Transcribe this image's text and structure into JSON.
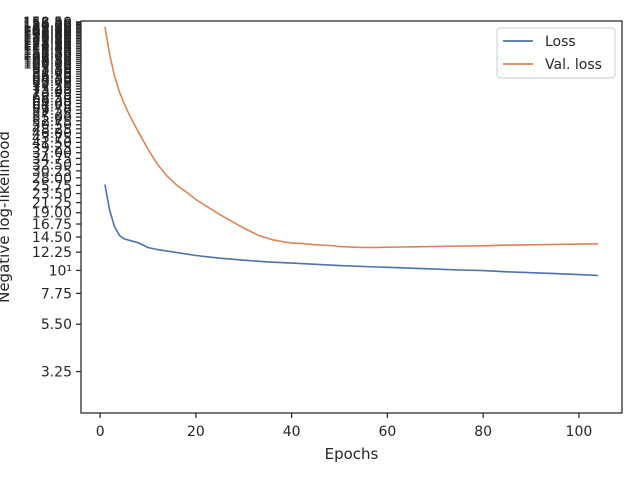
{
  "chart_data": {
    "type": "line",
    "xlabel": "Epochs",
    "ylabel": "Negative log-likelihood",
    "yscale": "log",
    "xlim": [
      -4,
      109
    ],
    "ylim": [
      2.05,
      160
    ],
    "grid": false,
    "legend_position": "top-right",
    "x_ticks": [
      0,
      20,
      40,
      60,
      80,
      100
    ],
    "x_tick_labels": [
      "0",
      "20",
      "40",
      "60",
      "80",
      "100"
    ],
    "y_ticks": [
      3.25,
      5.5,
      7.75,
      10,
      12.25,
      14.5,
      16.75,
      19,
      21.25,
      23.5,
      25.75,
      28,
      30.25,
      32.5,
      34.75,
      37,
      39.25,
      41.5,
      43.75,
      46,
      48.25,
      50.5,
      52.75,
      55,
      57.25,
      59.5,
      61.75,
      64,
      66.25,
      68.5,
      70.75,
      73,
      75.25,
      77.5,
      79.75,
      82,
      84.25,
      86.5,
      88.75,
      91,
      93.25,
      95.5,
      97.75,
      100,
      102.25,
      104.5,
      106.75,
      109,
      111.25,
      113.5,
      115.75,
      118,
      120.25,
      122.5,
      124.75,
      127,
      129.25,
      131.5,
      133.75,
      136,
      138.25,
      140.5,
      142.75,
      145,
      147.25,
      149.5,
      151.75,
      154,
      156.25,
      158.5
    ],
    "y_tick_labels": [
      "3.25",
      "5.50",
      "7.75",
      "10¹",
      "12.25",
      "14.50",
      "16.75",
      "19.00",
      "21.25",
      "23.50",
      "25.75",
      "28.00",
      "30.25",
      "32.50",
      "34.75",
      "37.00",
      "39.25",
      "41.50",
      "43.75",
      "46.00",
      "48.25",
      "50.50",
      "52.75",
      "55.00",
      "57.25",
      "59.50",
      "61.75",
      "64.00",
      "66.25",
      "68.50",
      "70.75",
      "73.00",
      "75.25",
      "77.50",
      "79.75",
      "82.00",
      "84.25",
      "86.50",
      "88.75",
      "91.00",
      "93.25",
      "95.50",
      "97.75",
      "100.00",
      "102.25",
      "104.50",
      "106.75",
      "109.00",
      "111.25",
      "113.50",
      "115.75",
      "118.00",
      "120.25",
      "122.50",
      "124.75",
      "127.00",
      "129.25",
      "131.50",
      "133.75",
      "136.00",
      "138.25",
      "140.50",
      "142.75",
      "145.00",
      "147.25",
      "149.50",
      "151.75",
      "154.00",
      "156.25",
      "158.50"
    ],
    "series": [
      {
        "name": "Loss",
        "color": "#4c72b0",
        "x": [
          1,
          2,
          3,
          4,
          5,
          6,
          8,
          10,
          12,
          15,
          20,
          25,
          30,
          35,
          40,
          45,
          50,
          55,
          60,
          65,
          70,
          75,
          80,
          85,
          90,
          95,
          100,
          104
        ],
        "y": [
          26,
          19.5,
          16.3,
          14.8,
          14.2,
          14.0,
          13.6,
          12.9,
          12.6,
          12.3,
          11.8,
          11.45,
          11.2,
          11.0,
          10.85,
          10.7,
          10.55,
          10.45,
          10.35,
          10.25,
          10.15,
          10.05,
          9.98,
          9.85,
          9.75,
          9.65,
          9.55,
          9.45
        ]
      },
      {
        "name": "Val. loss",
        "color": "#dd8452",
        "x": [
          1,
          2,
          3,
          4,
          5,
          6,
          8,
          10,
          12,
          14,
          16,
          18,
          20,
          25,
          30,
          33,
          36,
          38,
          40,
          42,
          45,
          48,
          50,
          53,
          55,
          58,
          60,
          63,
          66,
          70,
          75,
          80,
          85,
          90,
          95,
          100,
          104
        ],
        "y": [
          150,
          110,
          87,
          73,
          64,
          57,
          46.5,
          38.5,
          32.5,
          28.5,
          25.8,
          23.9,
          22.0,
          18.6,
          16.0,
          14.8,
          14.05,
          13.8,
          13.55,
          13.5,
          13.3,
          13.2,
          13.05,
          12.95,
          12.9,
          12.92,
          12.95,
          12.98,
          13.0,
          13.05,
          13.1,
          13.15,
          13.25,
          13.3,
          13.35,
          13.4,
          13.45
        ]
      }
    ]
  }
}
